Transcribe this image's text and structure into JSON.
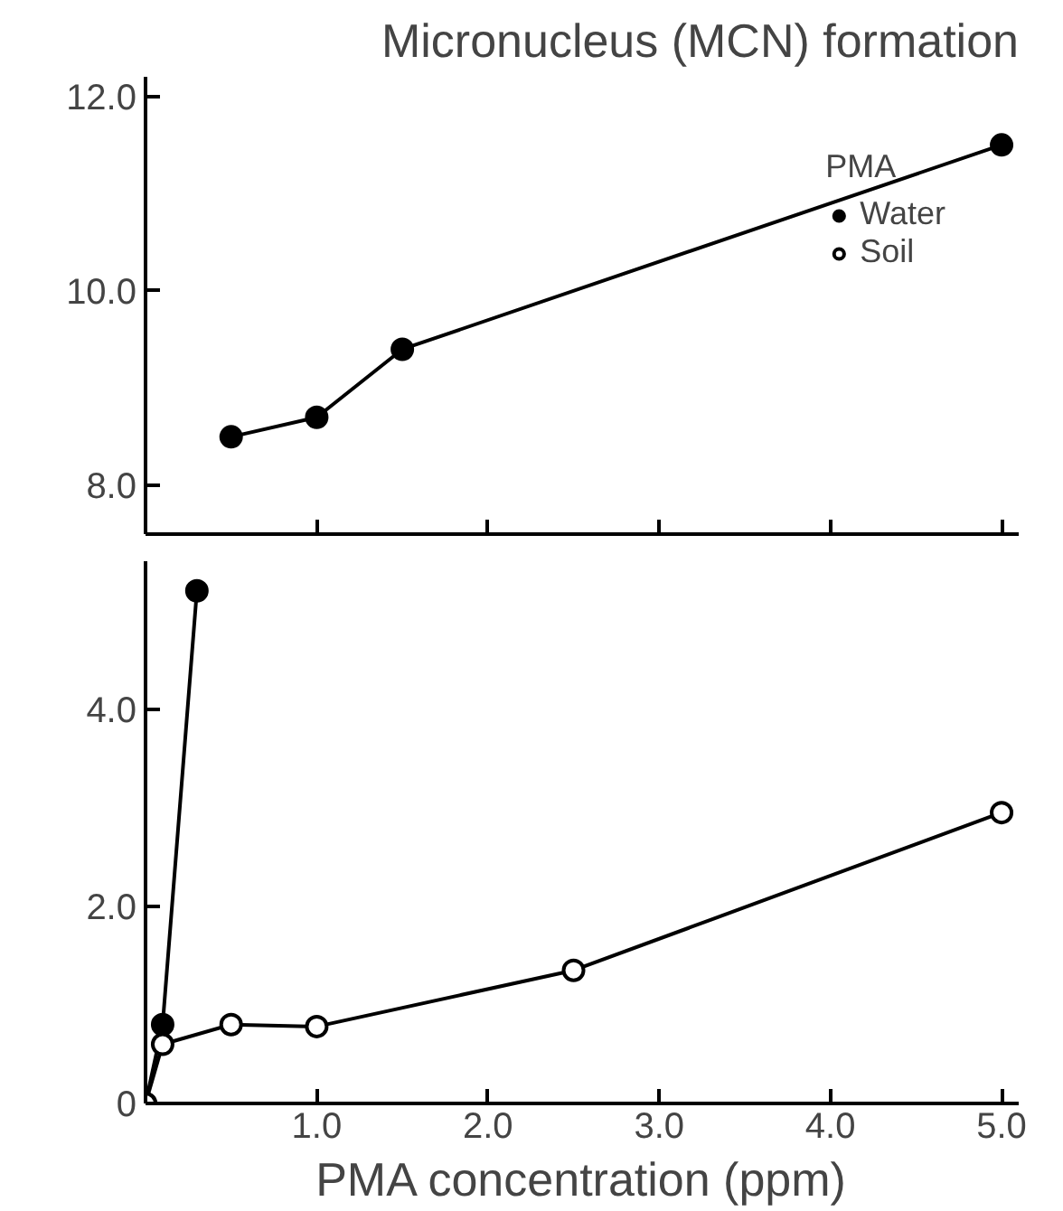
{
  "chart_data": [
    {
      "type": "line",
      "title": "Micronucleus (MCN) formation",
      "legend_title": "PMA",
      "legend": "top right",
      "tick_labels": "y",
      "grid": false,
      "xlim": [
        0,
        5.1
      ],
      "ylim": [
        7.5,
        12.2
      ],
      "xticks": [
        {
          "value": 1,
          "label": null
        },
        {
          "value": 2,
          "label": null
        },
        {
          "value": 3,
          "label": null
        },
        {
          "value": 4,
          "label": null
        },
        {
          "value": 5,
          "label": null
        }
      ],
      "yticks": [
        {
          "value": 8,
          "label": "8.0"
        },
        {
          "value": 10,
          "label": "10.0"
        },
        {
          "value": 12,
          "label": "12.0"
        }
      ],
      "series": [
        {
          "name": "Water",
          "color": "#000000",
          "marker": "circle",
          "x": [
            0.5,
            1.0,
            1.5,
            5.0
          ],
          "values": [
            8.5,
            8.7,
            9.4,
            11.5
          ]
        },
        {
          "name": "Soil",
          "color": "#000000",
          "marker": "circle_open"
        }
      ]
    },
    {
      "type": "line",
      "xlabel": "PMA concentration (ppm)",
      "grid": false,
      "legend": false,
      "xlim": [
        0,
        5.1
      ],
      "ylim": [
        0,
        5.5
      ],
      "xticks": [
        {
          "value": 1,
          "label": "1.0"
        },
        {
          "value": 2,
          "label": "2.0"
        },
        {
          "value": 3,
          "label": "3.0"
        },
        {
          "value": 4,
          "label": "4.0"
        },
        {
          "value": 5,
          "label": "5.0"
        }
      ],
      "yticks": [
        0,
        {
          "value": 2,
          "label": "2.0"
        },
        {
          "value": 4,
          "label": "4.0"
        }
      ],
      "series": [
        {
          "color": "#000000",
          "marker": "circle",
          "x": [
            0,
            0.1,
            0.3
          ],
          "values": [
            0,
            0.8,
            5.2
          ]
        },
        {
          "color": "#000000",
          "marker": "circle_open",
          "x": [
            0,
            0.1,
            0.5,
            1.0,
            2.5,
            5.0
          ],
          "values": [
            0,
            0.6,
            0.8,
            0.78,
            1.35,
            2.95
          ]
        }
      ]
    }
  ]
}
